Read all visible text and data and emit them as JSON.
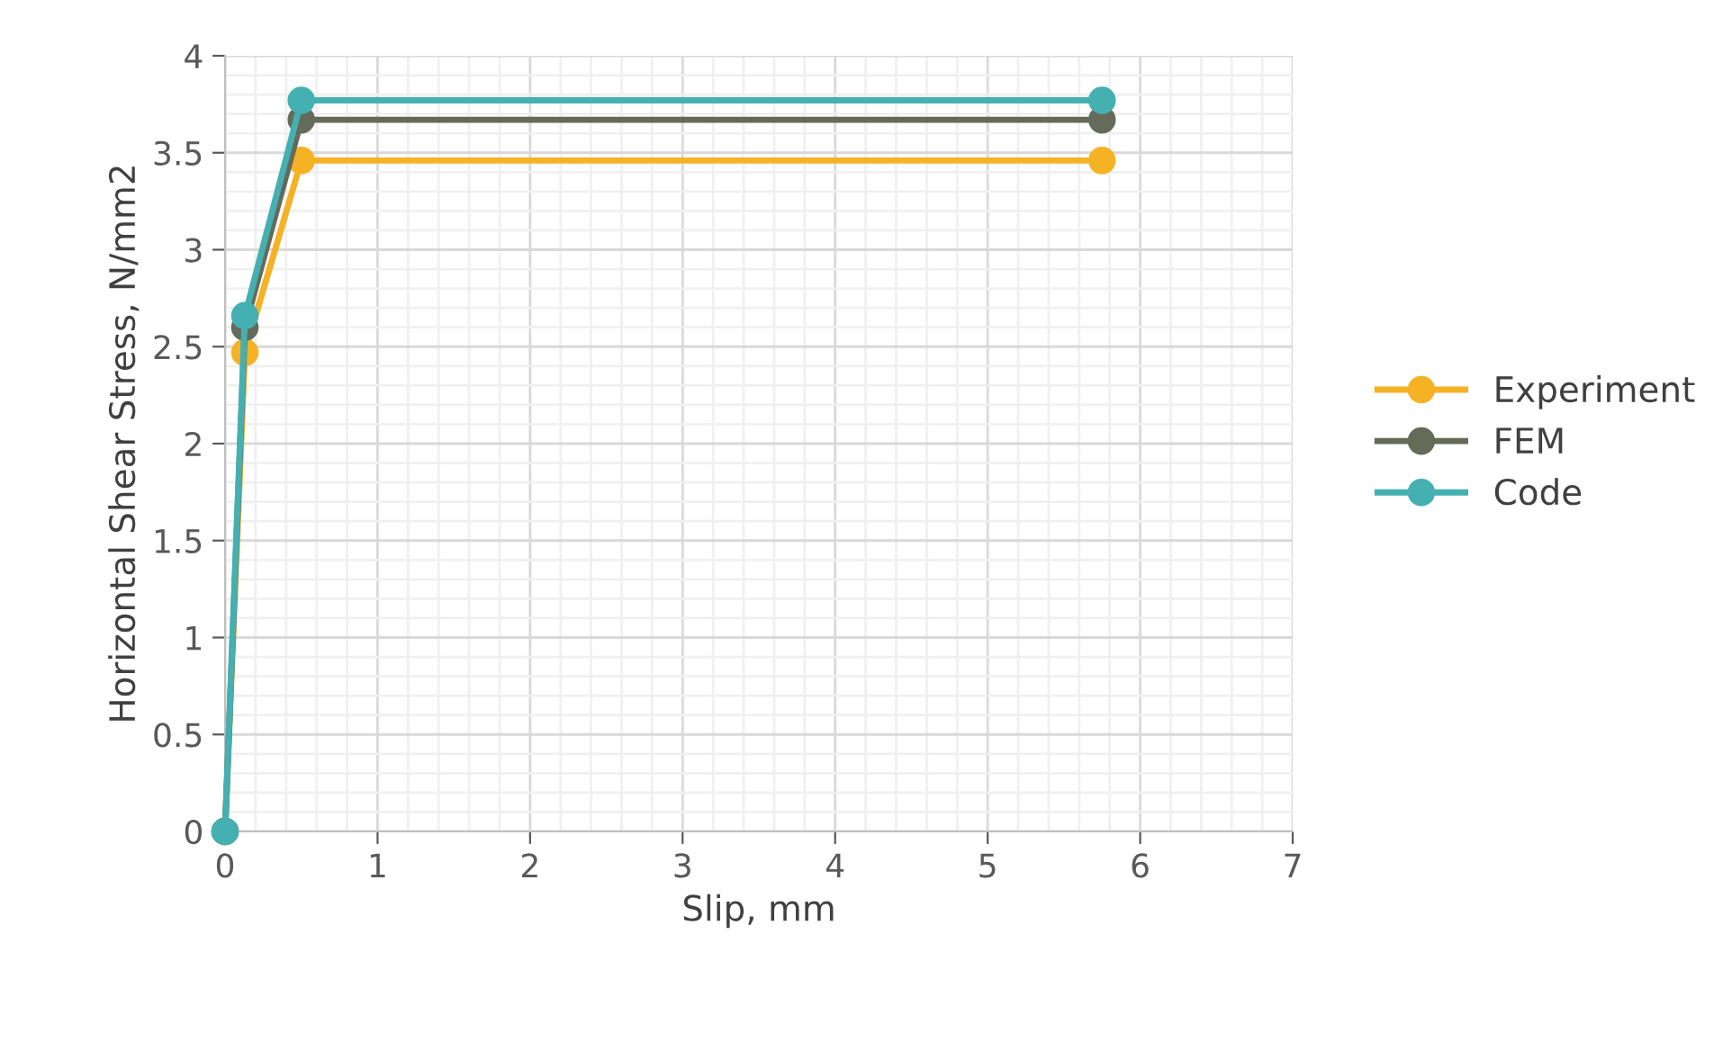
{
  "chart_data": {
    "type": "line",
    "xlabel": "Slip, mm",
    "ylabel": "Horizontal Shear Stress, N/mm2",
    "x": [
      0,
      0.13,
      0.5,
      5.75
    ],
    "series": [
      {
        "name": "Experiment",
        "color": "#f5b225",
        "values": [
          0,
          2.47,
          3.46,
          3.46
        ]
      },
      {
        "name": "FEM",
        "color": "#656a59",
        "values": [
          0,
          2.6,
          3.67,
          3.67
        ]
      },
      {
        "name": "Code",
        "color": "#45b0b2",
        "values": [
          0,
          2.66,
          3.77,
          3.77
        ]
      }
    ],
    "xlim": [
      0,
      7
    ],
    "xticks": [
      0,
      1,
      2,
      3,
      4,
      5,
      6,
      7
    ],
    "ylim": [
      0,
      4
    ],
    "yticks": [
      0,
      0.5,
      1,
      1.5,
      2,
      2.5,
      3,
      3.5,
      4
    ],
    "grid": true,
    "legend": "right",
    "marker": "circle",
    "line_style": "solid"
  }
}
